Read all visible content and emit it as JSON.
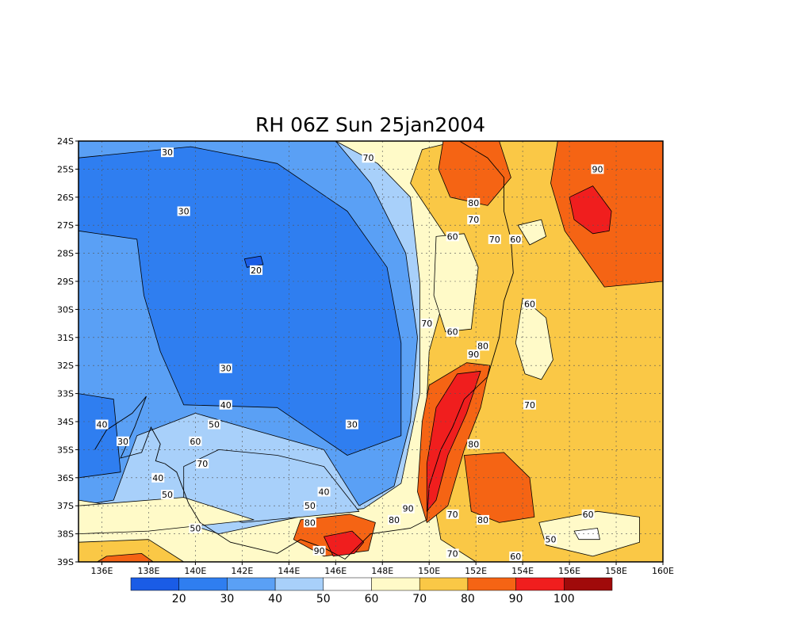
{
  "chart_data": {
    "type": "heatmap",
    "title": "RH 06Z Sun 25jan2004",
    "variable": "RH",
    "xlim": [
      135,
      160
    ],
    "ylim": [
      -39,
      -24
    ],
    "x_ticks": [
      "136E",
      "138E",
      "140E",
      "142E",
      "144E",
      "146E",
      "148E",
      "150E",
      "152E",
      "154E",
      "156E",
      "158E",
      "160E"
    ],
    "x_tick_values": [
      136,
      138,
      140,
      142,
      144,
      146,
      148,
      150,
      152,
      154,
      156,
      158,
      160
    ],
    "y_ticks": [
      "24S",
      "25S",
      "26S",
      "27S",
      "28S",
      "29S",
      "30S",
      "31S",
      "32S",
      "33S",
      "34S",
      "35S",
      "36S",
      "37S",
      "38S",
      "39S"
    ],
    "y_tick_values": [
      -24,
      -25,
      -26,
      -27,
      -28,
      -29,
      -30,
      -31,
      -32,
      -33,
      -34,
      -35,
      -36,
      -37,
      -38,
      -39
    ],
    "grid": true,
    "contour_interval": 10,
    "colorbar": {
      "ticks": [
        "20",
        "30",
        "40",
        "50",
        "60",
        "70",
        "80",
        "90",
        "100"
      ],
      "colors": [
        "#1a5ce6",
        "#2f7ef0",
        "#5aa0f5",
        "#a8d0fa",
        "#ffffff",
        "#fffac8",
        "#fac846",
        "#f56414",
        "#f01e1e",
        "#a00a0a"
      ]
    },
    "regions": [
      {
        "level": "30-40",
        "points": [
          [
            135,
            -24
          ],
          [
            146,
            -24
          ],
          [
            147.5,
            -25.5
          ],
          [
            149,
            -28
          ],
          [
            149.5,
            -31
          ],
          [
            149.2,
            -34
          ],
          [
            148.5,
            -36.3
          ],
          [
            147,
            -37
          ],
          [
            145.5,
            -35
          ],
          [
            142.5,
            -34.3
          ],
          [
            140,
            -33.7
          ],
          [
            137.5,
            -34.5
          ],
          [
            136.5,
            -36.8
          ],
          [
            135,
            -37
          ]
        ]
      },
      {
        "level": "20-30",
        "points": [
          [
            135,
            -24.6
          ],
          [
            139.8,
            -24.2
          ],
          [
            143.5,
            -24.8
          ],
          [
            146.5,
            -26.5
          ],
          [
            148.2,
            -28.5
          ],
          [
            148.8,
            -31.2
          ],
          [
            148.8,
            -34.5
          ],
          [
            146.5,
            -35.2
          ],
          [
            143.5,
            -33.5
          ],
          [
            139.5,
            -33.4
          ],
          [
            138.5,
            -31.5
          ],
          [
            137.8,
            -29.5
          ],
          [
            137.5,
            -27.5
          ],
          [
            135,
            -27.2
          ]
        ]
      },
      {
        "level": "20-30",
        "points": [
          [
            135,
            -33
          ],
          [
            136.5,
            -33.2
          ],
          [
            136.8,
            -35.8
          ],
          [
            135,
            -36
          ]
        ]
      },
      {
        "level": "10-20",
        "points": [
          [
            142.1,
            -28.2
          ],
          [
            142.8,
            -28.1
          ],
          [
            142.9,
            -28.4
          ],
          [
            142.2,
            -28.5
          ]
        ]
      },
      {
        "level": "60-70",
        "points": [
          [
            146,
            -24
          ],
          [
            160,
            -24
          ],
          [
            160,
            -39
          ],
          [
            135,
            -39
          ],
          [
            135,
            -36.8
          ],
          [
            138,
            -37.2
          ],
          [
            141,
            -38
          ],
          [
            145,
            -37.3
          ],
          [
            147.2,
            -37.1
          ],
          [
            148.8,
            -36.2
          ],
          [
            149.6,
            -33
          ],
          [
            149.6,
            -29
          ],
          [
            149.2,
            -26
          ],
          [
            147.8,
            -24.8
          ]
        ]
      },
      {
        "level": "40-50",
        "points": [
          [
            139.5,
            -36.8
          ],
          [
            142,
            -37.6
          ],
          [
            144.5,
            -37.4
          ],
          [
            147,
            -37.2
          ],
          [
            145.5,
            -35.6
          ],
          [
            143.5,
            -35.2
          ],
          [
            141,
            -35
          ],
          [
            139.5,
            -35.6
          ]
        ]
      },
      {
        "level": "70-80",
        "points": [
          [
            149.7,
            -24.3
          ],
          [
            151.2,
            -24
          ],
          [
            155.5,
            -24
          ],
          [
            157,
            -25
          ],
          [
            160,
            -24.2
          ],
          [
            160,
            -39
          ],
          [
            152,
            -39
          ],
          [
            150.5,
            -38.2
          ],
          [
            149.8,
            -35
          ],
          [
            150,
            -31.5
          ],
          [
            151,
            -28.5
          ],
          [
            150.8,
            -27.5
          ],
          [
            149.2,
            -25.5
          ]
        ]
      },
      {
        "level": "80-90",
        "points": [
          [
            150.6,
            -24
          ],
          [
            153,
            -24
          ],
          [
            153.5,
            -25.3
          ],
          [
            152.5,
            -26.3
          ],
          [
            150.9,
            -26
          ],
          [
            150.4,
            -25
          ]
        ]
      },
      {
        "level": "80-90",
        "points": [
          [
            155.5,
            -24
          ],
          [
            160,
            -24
          ],
          [
            160,
            -29
          ],
          [
            157.5,
            -29.2
          ],
          [
            155.8,
            -27.2
          ],
          [
            155.2,
            -25.5
          ]
        ]
      },
      {
        "level": "80-90",
        "points": [
          [
            150,
            -32.7
          ],
          [
            151.6,
            -31.9
          ],
          [
            152.6,
            -32
          ],
          [
            152.2,
            -33.5
          ],
          [
            151.5,
            -35
          ],
          [
            150.8,
            -37
          ],
          [
            149.9,
            -37.6
          ],
          [
            149.5,
            -36.5
          ],
          [
            149.7,
            -34
          ]
        ]
      },
      {
        "level": "80-90",
        "points": [
          [
            151.5,
            -35.2
          ],
          [
            153.2,
            -35.1
          ],
          [
            154.3,
            -36
          ],
          [
            154.5,
            -37.4
          ],
          [
            153,
            -37.6
          ],
          [
            151.8,
            -37.2
          ]
        ]
      },
      {
        "level": "80-90",
        "points": [
          [
            144.5,
            -37.5
          ],
          [
            146.6,
            -37.3
          ],
          [
            147.7,
            -37.6
          ],
          [
            147.4,
            -38.6
          ],
          [
            145.5,
            -38.8
          ],
          [
            144.2,
            -38.2
          ]
        ]
      },
      {
        "level": "90-100",
        "points": [
          [
            150.3,
            -33.5
          ],
          [
            151.2,
            -32.3
          ],
          [
            152.2,
            -32.2
          ],
          [
            151.6,
            -33.7
          ],
          [
            150.8,
            -35.2
          ],
          [
            150.3,
            -36.8
          ],
          [
            149.9,
            -37.2
          ],
          [
            149.9,
            -35.5
          ]
        ]
      },
      {
        "level": "90-100",
        "points": [
          [
            156,
            -26
          ],
          [
            157,
            -25.6
          ],
          [
            157.8,
            -26.5
          ],
          [
            157.7,
            -27.2
          ],
          [
            157,
            -27.3
          ],
          [
            156.2,
            -26.8
          ]
        ]
      },
      {
        "level": "90-100",
        "points": [
          [
            145.5,
            -38.1
          ],
          [
            146.7,
            -37.9
          ],
          [
            147.2,
            -38.3
          ],
          [
            146.8,
            -38.7
          ],
          [
            145.9,
            -38.8
          ]
        ]
      },
      {
        "level": "60-70",
        "points": [
          [
            150.3,
            -27.4
          ],
          [
            151.5,
            -27.3
          ],
          [
            152.1,
            -28.5
          ],
          [
            151.8,
            -30.7
          ],
          [
            150.7,
            -30.8
          ],
          [
            150.2,
            -29.5
          ]
        ]
      },
      {
        "level": "60-70",
        "points": [
          [
            153.8,
            -27
          ],
          [
            154.8,
            -26.8
          ],
          [
            155,
            -27.4
          ],
          [
            154.3,
            -27.7
          ]
        ]
      },
      {
        "level": "60-70",
        "points": [
          [
            154,
            -29.6
          ],
          [
            155,
            -30.3
          ],
          [
            155.3,
            -31.8
          ],
          [
            154.8,
            -32.5
          ],
          [
            154.1,
            -32.3
          ],
          [
            153.7,
            -31.2
          ]
        ]
      },
      {
        "level": "60-70",
        "points": [
          [
            154.7,
            -37.6
          ],
          [
            157.2,
            -37.2
          ],
          [
            159,
            -37.4
          ],
          [
            159,
            -38.3
          ],
          [
            157,
            -38.8
          ],
          [
            155,
            -38.4
          ]
        ]
      },
      {
        "level": "50-60",
        "points": [
          [
            156.2,
            -37.9
          ],
          [
            157.2,
            -37.8
          ],
          [
            157.3,
            -38.2
          ],
          [
            156.4,
            -38.2
          ]
        ]
      },
      {
        "level": "60-70",
        "points": [
          [
            135,
            -37
          ],
          [
            139.5,
            -36.7
          ],
          [
            142.5,
            -37.5
          ],
          [
            138,
            -37.9
          ],
          [
            135,
            -38
          ]
        ]
      },
      {
        "level": "70-80",
        "points": [
          [
            135,
            -38.3
          ],
          [
            138,
            -38.2
          ],
          [
            139.5,
            -39
          ],
          [
            135,
            -39
          ]
        ]
      },
      {
        "level": "80-90",
        "points": [
          [
            136.2,
            -38.8
          ],
          [
            137.7,
            -38.7
          ],
          [
            138.2,
            -39
          ],
          [
            135.8,
            -39
          ]
        ]
      }
    ],
    "contour_labels": [
      {
        "text": "30",
        "x": 138.8,
        "y": -24.4
      },
      {
        "text": "30",
        "x": 139.5,
        "y": -26.5
      },
      {
        "text": "20",
        "x": 142.6,
        "y": -28.6
      },
      {
        "text": "30",
        "x": 141.3,
        "y": -32.1
      },
      {
        "text": "40",
        "x": 141.3,
        "y": -33.4
      },
      {
        "text": "50",
        "x": 140.8,
        "y": -34.1
      },
      {
        "text": "60",
        "x": 140,
        "y": -34.7
      },
      {
        "text": "70",
        "x": 140.3,
        "y": -35.5
      },
      {
        "text": "40",
        "x": 136,
        "y": -34.1
      },
      {
        "text": "30",
        "x": 136.9,
        "y": -34.7
      },
      {
        "text": "40",
        "x": 138.4,
        "y": -36
      },
      {
        "text": "50",
        "x": 138.8,
        "y": -36.6
      },
      {
        "text": "50",
        "x": 140,
        "y": -37.8
      },
      {
        "text": "30",
        "x": 146.7,
        "y": -34.1
      },
      {
        "text": "40",
        "x": 145.5,
        "y": -36.5
      },
      {
        "text": "50",
        "x": 144.9,
        "y": -37
      },
      {
        "text": "80",
        "x": 144.9,
        "y": -37.6
      },
      {
        "text": "90",
        "x": 145.3,
        "y": -38.6
      },
      {
        "text": "70",
        "x": 147.4,
        "y": -24.6
      },
      {
        "text": "80",
        "x": 151.9,
        "y": -26.2
      },
      {
        "text": "70",
        "x": 151.9,
        "y": -26.8
      },
      {
        "text": "60",
        "x": 151,
        "y": -27.4
      },
      {
        "text": "70",
        "x": 152.8,
        "y": -27.5
      },
      {
        "text": "60",
        "x": 153.7,
        "y": -27.5
      },
      {
        "text": "70",
        "x": 149.9,
        "y": -30.5
      },
      {
        "text": "60",
        "x": 151,
        "y": -30.8
      },
      {
        "text": "80",
        "x": 152.3,
        "y": -31.3
      },
      {
        "text": "90",
        "x": 151.9,
        "y": -31.6
      },
      {
        "text": "60",
        "x": 154.3,
        "y": -29.8
      },
      {
        "text": "70",
        "x": 154.3,
        "y": -33.4
      },
      {
        "text": "80",
        "x": 151.9,
        "y": -34.8
      },
      {
        "text": "90",
        "x": 149.1,
        "y": -37.1
      },
      {
        "text": "80",
        "x": 148.5,
        "y": -37.5
      },
      {
        "text": "70",
        "x": 151,
        "y": -37.3
      },
      {
        "text": "80",
        "x": 152.3,
        "y": -37.5
      },
      {
        "text": "60",
        "x": 156.8,
        "y": -37.3
      },
      {
        "text": "50",
        "x": 155.2,
        "y": -38.2
      },
      {
        "text": "60",
        "x": 153.7,
        "y": -38.8
      },
      {
        "text": "70",
        "x": 151,
        "y": -38.7
      },
      {
        "text": "90",
        "x": 157.2,
        "y": -25
      }
    ]
  }
}
